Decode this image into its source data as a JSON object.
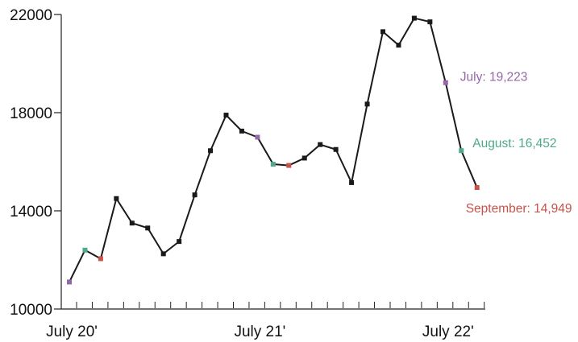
{
  "chart_data": {
    "type": "line",
    "title": "",
    "xlabel": "",
    "ylabel": "",
    "ylim": [
      10000,
      22000
    ],
    "yticks": [
      10000,
      14000,
      18000,
      22000
    ],
    "ytick_labels": [
      "10000",
      "14000",
      "18000",
      "22000"
    ],
    "xtick_labels": [
      {
        "index": 0,
        "label": "July 20'"
      },
      {
        "index": 12,
        "label": "July 21'"
      },
      {
        "index": 24,
        "label": "July 22'"
      }
    ],
    "x": [
      "Jul 2020",
      "Aug 2020",
      "Sep 2020",
      "Oct 2020",
      "Nov 2020",
      "Dec 2020",
      "Jan 2021",
      "Feb 2021",
      "Mar 2021",
      "Apr 2021",
      "May 2021",
      "Jun 2021",
      "Jul 2021",
      "Aug 2021",
      "Sep 2021",
      "Oct 2021",
      "Nov 2021",
      "Dec 2021",
      "Jan 2022",
      "Feb 2022",
      "Mar 2022",
      "Apr 2022",
      "May 2022",
      "Jun 2022",
      "Jul 2022",
      "Aug 2022",
      "Sep 2022"
    ],
    "values": [
      11100,
      12400,
      12050,
      14500,
      13500,
      13300,
      12250,
      12750,
      14650,
      16450,
      17900,
      17250,
      17000,
      15900,
      15850,
      16150,
      16700,
      16500,
      15150,
      18350,
      21300,
      20750,
      21850,
      21700,
      19223,
      16452,
      14949
    ],
    "marker_colors": {
      "default": "#1a1a1a",
      "july": "#9467a6",
      "august": "#4fa98a",
      "september": "#c8524a"
    },
    "highlights": [
      {
        "index": 0,
        "month": "july"
      },
      {
        "index": 1,
        "month": "august"
      },
      {
        "index": 2,
        "month": "september"
      },
      {
        "index": 12,
        "month": "july"
      },
      {
        "index": 13,
        "month": "august"
      },
      {
        "index": 14,
        "month": "september"
      },
      {
        "index": 24,
        "month": "july"
      },
      {
        "index": 25,
        "month": "august"
      },
      {
        "index": 26,
        "month": "september"
      }
    ],
    "annotations": [
      {
        "index": 24,
        "text": "July: 19,223",
        "month": "july"
      },
      {
        "index": 25,
        "text": "August: 16,452",
        "month": "august"
      },
      {
        "index": 26,
        "text": "September: 14,949",
        "month": "september"
      }
    ],
    "line_color": "#1a1a1a",
    "grid": false,
    "legend": "none"
  }
}
